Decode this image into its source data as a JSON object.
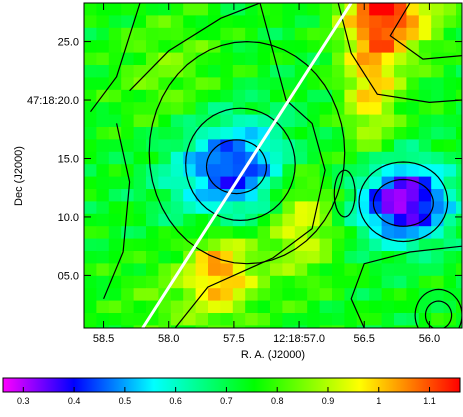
{
  "chart_data": {
    "type": "heatmap",
    "title": "",
    "xlabel": "R. A. (J2000)",
    "ylabel": "Dec (J2000)",
    "x_ticks": [
      "58.5",
      "58.0",
      "57.5",
      "12:18:57.0",
      "56.5",
      "56.0"
    ],
    "y_ticks": [
      "25.0",
      "47:18:20.0",
      "15.0",
      "10.0",
      "05.0"
    ],
    "x_range_seconds": [
      58.65,
      55.75
    ],
    "y_range_arcsec": [
      0.5,
      28.3
    ],
    "x_tick_values": [
      58.5,
      58.0,
      57.5,
      57.0,
      56.5,
      56.0
    ],
    "y_tick_values": [
      25.0,
      20.0,
      15.0,
      10.0,
      5.0
    ],
    "colorbar": {
      "ticks": [
        "0.3",
        "0.4",
        "0.5",
        "0.6",
        "0.7",
        "0.8",
        "0.9",
        "1",
        "1.1"
      ],
      "tick_values": [
        0.3,
        0.4,
        0.5,
        0.6,
        0.7,
        0.8,
        0.9,
        1.0,
        1.1
      ],
      "range": [
        0.26,
        1.16
      ],
      "colormap": [
        "#ff00ff",
        "#0000ff",
        "#00ffff",
        "#00ff00",
        "#ffff00",
        "#ff0000"
      ]
    },
    "features": [
      {
        "kind": "minimum",
        "ra_sec": 57.5,
        "dec_arcsec": 14.0,
        "value": 0.45
      },
      {
        "kind": "minimum",
        "ra_sec": 56.2,
        "dec_arcsec": 11.3,
        "value": 0.3
      },
      {
        "kind": "maximum",
        "ra_sec": 56.3,
        "dec_arcsec": 28.0,
        "value": 1.1
      },
      {
        "kind": "maximum",
        "ra_sec": 57.6,
        "dec_arcsec": 5.5,
        "value": 1.0
      },
      {
        "kind": "maximum",
        "ra_sec": 57.0,
        "dec_arcsec": 10.0,
        "value": 0.98
      }
    ],
    "line": {
      "color": "#ffffff",
      "from": {
        "ra_sec": 58.2,
        "dec_arcsec": 0.5
      },
      "to": {
        "ra_sec": 56.6,
        "dec_arcsec": 28.3
      }
    },
    "contours": "black"
  }
}
